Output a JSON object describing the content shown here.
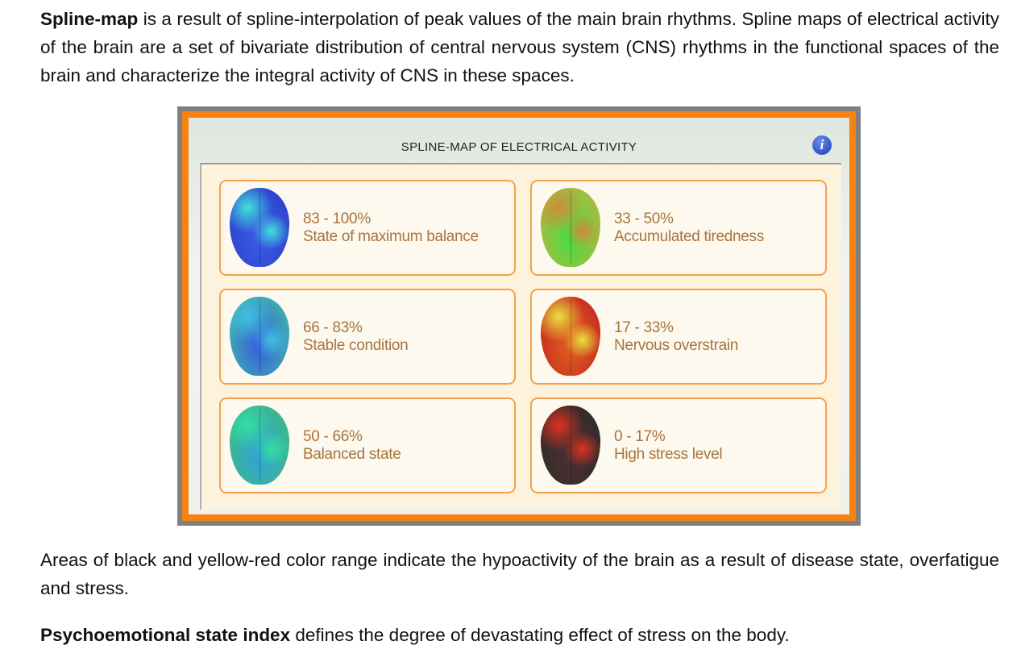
{
  "intro": {
    "bold": "Spline-map",
    "text": " is a result of spline-interpolation of peak values of the main brain rhythms. Spline maps of electrical activity of the brain are a set of bivariate distribution of central nervous system (CNS) rhythms in the functional spaces of the brain and characterize the integral activity of CNS in these spaces."
  },
  "panel": {
    "title": "SPLINE-MAP OF ELECTRICAL ACTIVITY",
    "info_icon": "info-icon",
    "cards": [
      {
        "range": "83 - 100%",
        "label": "State of maximum balance",
        "colors": [
          "#3fe0d8",
          "#3a5ee8",
          "#2a3cc8"
        ]
      },
      {
        "range": "33 - 50%",
        "label": "Accumulated tiredness",
        "colors": [
          "#d08a3a",
          "#40e040",
          "#c8b040"
        ]
      },
      {
        "range": "66 - 83%",
        "label": "Stable condition",
        "colors": [
          "#40c0e0",
          "#3858e0",
          "#40c8a0"
        ]
      },
      {
        "range": "17 - 33%",
        "label": "Nervous overstrain",
        "colors": [
          "#e8e040",
          "#e06020",
          "#c02020"
        ]
      },
      {
        "range": "50 - 66%",
        "label": "Balanced state",
        "colors": [
          "#30e0a0",
          "#30a0e0",
          "#40c070"
        ]
      },
      {
        "range": "0 - 17%",
        "label": "High stress level",
        "colors": [
          "#e03020",
          "#503030",
          "#2a2a2a"
        ]
      }
    ]
  },
  "note": "Areas of black and yellow-red color range indicate the hypoactivity of the brain as a result of disease state, overfatigue and stress.",
  "outro": {
    "bold": "Psychoemotional state index",
    "text": " defines the degree of devastating effect of stress on the body."
  }
}
